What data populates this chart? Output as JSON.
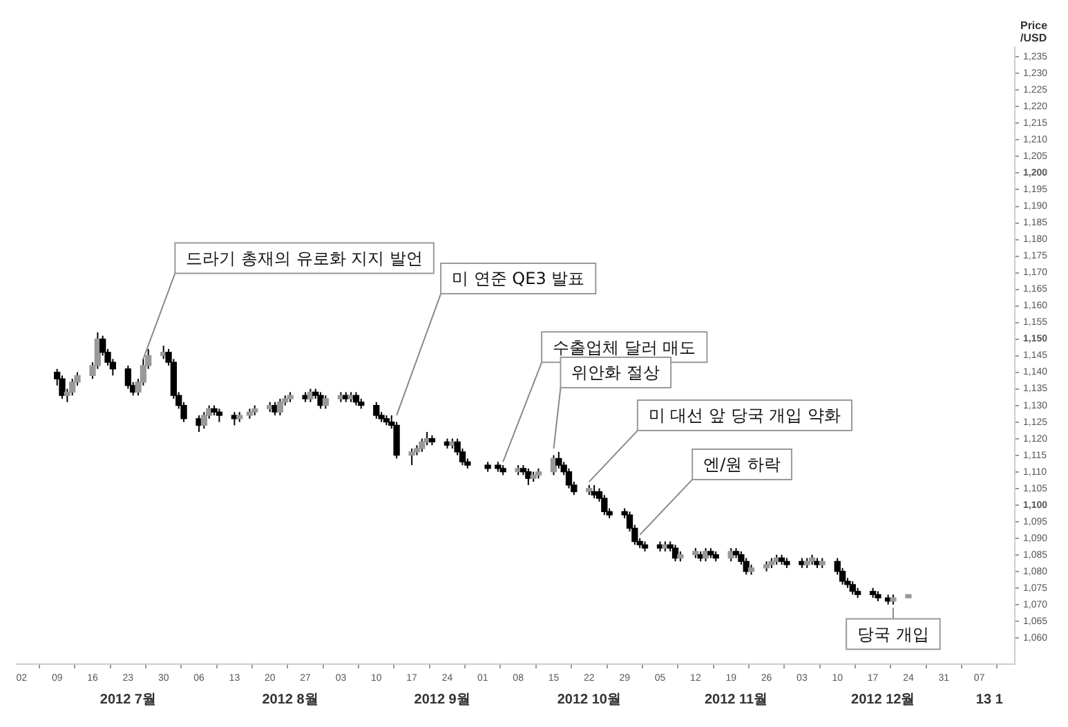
{
  "chart_data": {
    "type": "candlestick",
    "ylabel": "Price /USD",
    "color": "#000000",
    "x": [
      "2012-07-09",
      "2012-07-10",
      "2012-07-11",
      "2012-07-12",
      "2012-07-13",
      "2012-07-16",
      "2012-07-17",
      "2012-07-18",
      "2012-07-19",
      "2012-07-20",
      "2012-07-23",
      "2012-07-24",
      "2012-07-25",
      "2012-07-26",
      "2012-07-27",
      "2012-07-30",
      "2012-07-31",
      "2012-08-01",
      "2012-08-02",
      "2012-08-03",
      "2012-08-06",
      "2012-08-07",
      "2012-08-08",
      "2012-08-09",
      "2012-08-10",
      "2012-08-13",
      "2012-08-14",
      "2012-08-16",
      "2012-08-17",
      "2012-08-20",
      "2012-08-21",
      "2012-08-22",
      "2012-08-23",
      "2012-08-24",
      "2012-08-27",
      "2012-08-28",
      "2012-08-29",
      "2012-08-30",
      "2012-08-31",
      "2012-09-03",
      "2012-09-04",
      "2012-09-05",
      "2012-09-06",
      "2012-09-07",
      "2012-09-10",
      "2012-09-11",
      "2012-09-12",
      "2012-09-13",
      "2012-09-14",
      "2012-09-17",
      "2012-09-18",
      "2012-09-19",
      "2012-09-20",
      "2012-09-21",
      "2012-09-24",
      "2012-09-25",
      "2012-09-26",
      "2012-09-27",
      "2012-09-28",
      "2012-10-02",
      "2012-10-04",
      "2012-10-05",
      "2012-10-08",
      "2012-10-09",
      "2012-10-10",
      "2012-10-11",
      "2012-10-12",
      "2012-10-15",
      "2012-10-16",
      "2012-10-17",
      "2012-10-18",
      "2012-10-19",
      "2012-10-22",
      "2012-10-23",
      "2012-10-24",
      "2012-10-25",
      "2012-10-26",
      "2012-10-29",
      "2012-10-30",
      "2012-10-31",
      "2012-11-01",
      "2012-11-02",
      "2012-11-05",
      "2012-11-06",
      "2012-11-07",
      "2012-11-08",
      "2012-11-09",
      "2012-11-12",
      "2012-11-13",
      "2012-11-14",
      "2012-11-15",
      "2012-11-16",
      "2012-11-19",
      "2012-11-20",
      "2012-11-21",
      "2012-11-22",
      "2012-11-23",
      "2012-11-26",
      "2012-11-27",
      "2012-11-28",
      "2012-11-29",
      "2012-11-30",
      "2012-12-03",
      "2012-12-04",
      "2012-12-05",
      "2012-12-06",
      "2012-12-07",
      "2012-12-10",
      "2012-12-11",
      "2012-12-12",
      "2012-12-13",
      "2012-12-14",
      "2012-12-17",
      "2012-12-18",
      "2012-12-20",
      "2012-12-21",
      "2012-12-24"
    ],
    "ohlc": [
      [
        1140,
        1141,
        1136,
        1138
      ],
      [
        1138,
        1139,
        1132,
        1133
      ],
      [
        1133,
        1135,
        1131,
        1134
      ],
      [
        1134,
        1138,
        1133,
        1137
      ],
      [
        1137,
        1140,
        1136,
        1139
      ],
      [
        1139,
        1143,
        1138,
        1142
      ],
      [
        1142,
        1152,
        1141,
        1150
      ],
      [
        1150,
        1151,
        1145,
        1146
      ],
      [
        1146,
        1147,
        1142,
        1143
      ],
      [
        1143,
        1144,
        1139,
        1141
      ],
      [
        1141,
        1142,
        1135,
        1136
      ],
      [
        1136,
        1137,
        1133,
        1134
      ],
      [
        1134,
        1138,
        1133,
        1137
      ],
      [
        1137,
        1144,
        1136,
        1142
      ],
      [
        1142,
        1147,
        1141,
        1145
      ],
      [
        1145,
        1148,
        1144,
        1146
      ],
      [
        1146,
        1147,
        1142,
        1143
      ],
      [
        1143,
        1144,
        1132,
        1133
      ],
      [
        1133,
        1134,
        1129,
        1130
      ],
      [
        1130,
        1131,
        1125,
        1126
      ],
      [
        1126,
        1127,
        1122,
        1124
      ],
      [
        1124,
        1128,
        1123,
        1127
      ],
      [
        1127,
        1130,
        1126,
        1129
      ],
      [
        1129,
        1130,
        1127,
        1128
      ],
      [
        1128,
        1129,
        1125,
        1127
      ],
      [
        1127,
        1128,
        1124,
        1126
      ],
      [
        1126,
        1128,
        1125,
        1127
      ],
      [
        1127,
        1129,
        1126,
        1128
      ],
      [
        1128,
        1130,
        1127,
        1129
      ],
      [
        1129,
        1131,
        1128,
        1130
      ],
      [
        1130,
        1131,
        1127,
        1128
      ],
      [
        1128,
        1132,
        1127,
        1131
      ],
      [
        1131,
        1133,
        1130,
        1132
      ],
      [
        1132,
        1134,
        1131,
        1133
      ],
      [
        1133,
        1134,
        1131,
        1132
      ],
      [
        1132,
        1135,
        1131,
        1134
      ],
      [
        1134,
        1135,
        1132,
        1133
      ],
      [
        1133,
        1134,
        1129,
        1130
      ],
      [
        1130,
        1133,
        1129,
        1132
      ],
      [
        1132,
        1134,
        1131,
        1133
      ],
      [
        1133,
        1134,
        1131,
        1132
      ],
      [
        1132,
        1134,
        1131,
        1133
      ],
      [
        1133,
        1134,
        1130,
        1131
      ],
      [
        1131,
        1132,
        1129,
        1130
      ],
      [
        1130,
        1131,
        1126,
        1127
      ],
      [
        1127,
        1128,
        1125,
        1126
      ],
      [
        1126,
        1127,
        1124,
        1125
      ],
      [
        1125,
        1127,
        1123,
        1124
      ],
      [
        1124,
        1125,
        1114,
        1115
      ],
      [
        1115,
        1117,
        1112,
        1116
      ],
      [
        1116,
        1118,
        1115,
        1117
      ],
      [
        1117,
        1120,
        1116,
        1119
      ],
      [
        1119,
        1122,
        1118,
        1120
      ],
      [
        1120,
        1121,
        1118,
        1119
      ],
      [
        1119,
        1120,
        1117,
        1118
      ],
      [
        1118,
        1120,
        1117,
        1119
      ],
      [
        1119,
        1120,
        1115,
        1116
      ],
      [
        1116,
        1117,
        1112,
        1113
      ],
      [
        1113,
        1114,
        1111,
        1112
      ],
      [
        1112,
        1113,
        1110,
        1111
      ],
      [
        1112,
        1113,
        1110,
        1111
      ],
      [
        1111,
        1112,
        1109,
        1110
      ],
      [
        1110,
        1112,
        1109,
        1111
      ],
      [
        1111,
        1112,
        1109,
        1110
      ],
      [
        1110,
        1111,
        1106,
        1108
      ],
      [
        1108,
        1110,
        1107,
        1109
      ],
      [
        1109,
        1111,
        1108,
        1110
      ],
      [
        1110,
        1115,
        1109,
        1114
      ],
      [
        1114,
        1116,
        1111,
        1112
      ],
      [
        1112,
        1113,
        1109,
        1110
      ],
      [
        1110,
        1111,
        1105,
        1106
      ],
      [
        1106,
        1107,
        1103,
        1104
      ],
      [
        1104,
        1106,
        1103,
        1105
      ],
      [
        1104,
        1106,
        1102,
        1103
      ],
      [
        1104,
        1105,
        1101,
        1102
      ],
      [
        1102,
        1103,
        1097,
        1098
      ],
      [
        1098,
        1099,
        1096,
        1097
      ],
      [
        1098,
        1099,
        1096,
        1097
      ],
      [
        1097,
        1098,
        1092,
        1093
      ],
      [
        1093,
        1094,
        1088,
        1089
      ],
      [
        1089,
        1090,
        1087,
        1088
      ],
      [
        1088,
        1089,
        1086,
        1087
      ],
      [
        1088,
        1089,
        1086,
        1087
      ],
      [
        1087,
        1089,
        1086,
        1088
      ],
      [
        1088,
        1089,
        1086,
        1087
      ],
      [
        1087,
        1088,
        1083,
        1084
      ],
      [
        1084,
        1086,
        1083,
        1085
      ],
      [
        1085,
        1087,
        1084,
        1086
      ],
      [
        1085,
        1086,
        1083,
        1084
      ],
      [
        1084,
        1087,
        1083,
        1086
      ],
      [
        1086,
        1087,
        1084,
        1085
      ],
      [
        1085,
        1086,
        1083,
        1084
      ],
      [
        1084,
        1087,
        1083,
        1086
      ],
      [
        1086,
        1087,
        1084,
        1085
      ],
      [
        1085,
        1086,
        1082,
        1083
      ],
      [
        1083,
        1084,
        1079,
        1080
      ],
      [
        1080,
        1082,
        1079,
        1081
      ],
      [
        1081,
        1083,
        1080,
        1082
      ],
      [
        1082,
        1084,
        1081,
        1083
      ],
      [
        1083,
        1085,
        1082,
        1084
      ],
      [
        1084,
        1085,
        1082,
        1083
      ],
      [
        1083,
        1084,
        1081,
        1082
      ],
      [
        1083,
        1084,
        1081,
        1082
      ],
      [
        1082,
        1084,
        1081,
        1083
      ],
      [
        1083,
        1085,
        1082,
        1084
      ],
      [
        1083,
        1084,
        1081,
        1082
      ],
      [
        1082,
        1084,
        1081,
        1083
      ],
      [
        1083,
        1084,
        1079,
        1080
      ],
      [
        1080,
        1081,
        1076,
        1077
      ],
      [
        1077,
        1078,
        1075,
        1076
      ],
      [
        1076,
        1077,
        1073,
        1074
      ],
      [
        1074,
        1075,
        1072,
        1073
      ],
      [
        1074,
        1075,
        1072,
        1073
      ],
      [
        1073,
        1074,
        1071,
        1072
      ],
      [
        1072,
        1073,
        1070,
        1071
      ],
      [
        1071,
        1073,
        1070,
        1072
      ],
      [
        1072,
        1073,
        1072,
        1073
      ]
    ],
    "colors": [
      "#000000",
      "#000000",
      "#999999",
      "#999999",
      "#999999",
      "#999999",
      "#999999",
      "#000000",
      "#000000",
      "#000000",
      "#000000",
      "#000000",
      "#999999",
      "#999999",
      "#999999",
      "#999999",
      "#000000",
      "#000000",
      "#000000",
      "#000000",
      "#000000",
      "#999999",
      "#999999",
      "#000000",
      "#000000",
      "#000000",
      "#999999",
      "#999999",
      "#999999",
      "#999999",
      "#000000",
      "#999999",
      "#999999",
      "#999999",
      "#000000",
      "#999999",
      "#000000",
      "#000000",
      "#999999",
      "#999999",
      "#000000",
      "#999999",
      "#000000",
      "#000000",
      "#000000",
      "#000000",
      "#000000",
      "#000000",
      "#000000",
      "#999999",
      "#999999",
      "#999999",
      "#999999",
      "#000000",
      "#000000",
      "#999999",
      "#000000",
      "#000000",
      "#000000",
      "#000000",
      "#000000",
      "#000000",
      "#999999",
      "#000000",
      "#000000",
      "#999999",
      "#999999",
      "#999999",
      "#000000",
      "#000000",
      "#000000",
      "#000000",
      "#999999",
      "#000000",
      "#000000",
      "#000000",
      "#000000",
      "#000000",
      "#000000",
      "#000000",
      "#000000",
      "#000000",
      "#000000",
      "#999999",
      "#000000",
      "#000000",
      "#999999",
      "#999999",
      "#000000",
      "#999999",
      "#000000",
      "#000000",
      "#999999",
      "#000000",
      "#000000",
      "#000000",
      "#999999",
      "#999999",
      "#999999",
      "#999999",
      "#000000",
      "#000000",
      "#000000",
      "#999999",
      "#999999",
      "#000000",
      "#999999",
      "#000000",
      "#000000",
      "#000000",
      "#000000",
      "#000000",
      "#000000",
      "#000000",
      "#000000",
      "#999999",
      "#999999"
    ],
    "xlim": [
      "2012-07-01",
      "2013-01-14"
    ],
    "xticks": [
      {
        "value": "2012-07-02",
        "label": "02"
      },
      {
        "value": "2012-07-09",
        "label": "09"
      },
      {
        "value": "2012-07-16",
        "label": "16"
      },
      {
        "value": "2012-07-23",
        "label": "23"
      },
      {
        "value": "2012-07-30",
        "label": "30"
      },
      {
        "value": "2012-08-06",
        "label": "06"
      },
      {
        "value": "2012-08-13",
        "label": "13"
      },
      {
        "value": "2012-08-20",
        "label": "20"
      },
      {
        "value": "2012-08-27",
        "label": "27"
      },
      {
        "value": "2012-09-03",
        "label": "03"
      },
      {
        "value": "2012-09-10",
        "label": "10"
      },
      {
        "value": "2012-09-17",
        "label": "17"
      },
      {
        "value": "2012-09-24",
        "label": "24"
      },
      {
        "value": "2012-10-01",
        "label": "01"
      },
      {
        "value": "2012-10-08",
        "label": "08"
      },
      {
        "value": "2012-10-15",
        "label": "15"
      },
      {
        "value": "2012-10-22",
        "label": "22"
      },
      {
        "value": "2012-10-29",
        "label": "29"
      },
      {
        "value": "2012-11-05",
        "label": "05"
      },
      {
        "value": "2012-11-12",
        "label": "12"
      },
      {
        "value": "2012-11-19",
        "label": "19"
      },
      {
        "value": "2012-11-26",
        "label": "26"
      },
      {
        "value": "2012-12-03",
        "label": "03"
      },
      {
        "value": "2012-12-10",
        "label": "10"
      },
      {
        "value": "2012-12-17",
        "label": "17"
      },
      {
        "value": "2012-12-24",
        "label": "24"
      },
      {
        "value": "2012-12-31",
        "label": "31"
      },
      {
        "value": "2013-01-07",
        "label": "07"
      }
    ],
    "x2lim": [
      "2012-07-01",
      "2013-01-14"
    ],
    "x2ticks": [
      {
        "value": "2012-07-23",
        "label": "2012 7월"
      },
      {
        "value": "2012-08-24",
        "label": "2012 8월"
      },
      {
        "value": "2012-09-23",
        "label": "2012 9월"
      },
      {
        "value": "2012-10-22",
        "label": "2012 10월"
      },
      {
        "value": "2012-11-20",
        "label": "2012 11월"
      },
      {
        "value": "2012-12-19",
        "label": "2012 12월"
      },
      {
        "value": "2013-01-09",
        "label": "13 1"
      }
    ],
    "ylim": [
      1052,
      1238
    ],
    "yticks": [
      {
        "value": 1060,
        "label": "1,060"
      },
      {
        "value": 1065,
        "label": "1,065"
      },
      {
        "value": 1070,
        "label": "1,070"
      },
      {
        "value": 1075,
        "label": "1,075"
      },
      {
        "value": 1080,
        "label": "1,080"
      },
      {
        "value": 1085,
        "label": "1,085"
      },
      {
        "value": 1090,
        "label": "1,090"
      },
      {
        "value": 1095,
        "label": "1,095"
      },
      {
        "value": 1100,
        "label": "1,100"
      },
      {
        "value": 1105,
        "label": "1,105"
      },
      {
        "value": 1110,
        "label": "1,110"
      },
      {
        "value": 1115,
        "label": "1,115"
      },
      {
        "value": 1120,
        "label": "1,120"
      },
      {
        "value": 1125,
        "label": "1,125"
      },
      {
        "value": 1130,
        "label": "1,130"
      },
      {
        "value": 1135,
        "label": "1,135"
      },
      {
        "value": 1140,
        "label": "1,140"
      },
      {
        "value": 1145,
        "label": "1,145"
      },
      {
        "value": 1150,
        "label": "1,150"
      },
      {
        "value": 1155,
        "label": "1,155"
      },
      {
        "value": 1160,
        "label": "1,160"
      },
      {
        "value": 1165,
        "label": "1,165"
      },
      {
        "value": 1170,
        "label": "1,170"
      },
      {
        "value": 1175,
        "label": "1,175"
      },
      {
        "value": 1180,
        "label": "1,180"
      },
      {
        "value": 1185,
        "label": "1,185"
      },
      {
        "value": 1190,
        "label": "1,190"
      },
      {
        "value": 1195,
        "label": "1,195"
      },
      {
        "value": 1200,
        "label": "1,200"
      },
      {
        "value": 1205,
        "label": "1,205"
      },
      {
        "value": 1210,
        "label": "1,210"
      },
      {
        "value": 1215,
        "label": "1,215"
      },
      {
        "value": 1220,
        "label": "1,220"
      },
      {
        "value": 1225,
        "label": "1,225"
      },
      {
        "value": 1230,
        "label": "1,230"
      },
      {
        "value": 1235,
        "label": "1,235"
      }
    ],
    "annotations": [
      {
        "text": "드라기 총재의 유로화 지지 발언",
        "x": "2012-07-26",
        "y": 1144
      },
      {
        "text": "미 연준 QE3 발표",
        "x": "2012-09-14",
        "y": 1127
      },
      {
        "text": "수출업체 달러 매도",
        "x": "2012-10-05",
        "y": 1113
      },
      {
        "text": "위안화 절상",
        "x": "2012-10-15",
        "y": 1117
      },
      {
        "text": "미 대선 앞 당국 개입 약화",
        "x": "2012-10-22",
        "y": 1107
      },
      {
        "text": "엔/원 하락",
        "x": "2012-11-01",
        "y": 1091
      },
      {
        "text": "당국 개입",
        "x": "2012-12-21",
        "y": 1069
      }
    ]
  }
}
